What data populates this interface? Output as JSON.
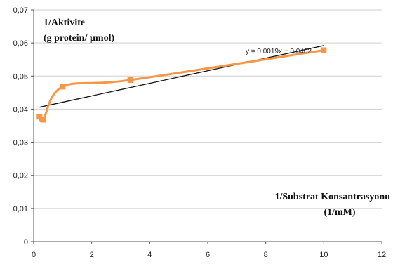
{
  "chart_data": {
    "type": "scatter",
    "ylabel_line1": "1/Aktivite",
    "ylabel_line2": "(g protein/ µmol)",
    "xlabel_line1": "1/Substrat Konsantrasyonu",
    "xlabel_line2": "(1/mM)",
    "xlim": [
      0,
      12
    ],
    "ylim": [
      0,
      0.07
    ],
    "x_ticks": [
      0,
      2,
      4,
      6,
      8,
      10,
      12
    ],
    "x_tick_labels": [
      "0",
      "2",
      "4",
      "6",
      "8",
      "10",
      "12"
    ],
    "y_ticks": [
      0,
      0.01,
      0.02,
      0.03,
      0.04,
      0.05,
      0.06,
      0.07
    ],
    "y_tick_labels": [
      "0",
      "0,01",
      "0,02",
      "0,03",
      "0,04",
      "0,05",
      "0,06",
      "0,07"
    ],
    "grid": "horizontal",
    "series": [
      {
        "color": "#F79646",
        "style": "smoothed line with square markers",
        "x": [
          0.2,
          0.33,
          1.0,
          3.33,
          10.0
        ],
        "y": [
          0.0377,
          0.0368,
          0.0468,
          0.0488,
          0.0578
        ]
      }
    ],
    "trendline": {
      "type": "linear",
      "color": "#111111",
      "slope": 0.0019,
      "intercept": 0.0402,
      "x_range": [
        0.2,
        10.0
      ],
      "equation_label": "y = 0,0019x + 0,0402"
    }
  }
}
